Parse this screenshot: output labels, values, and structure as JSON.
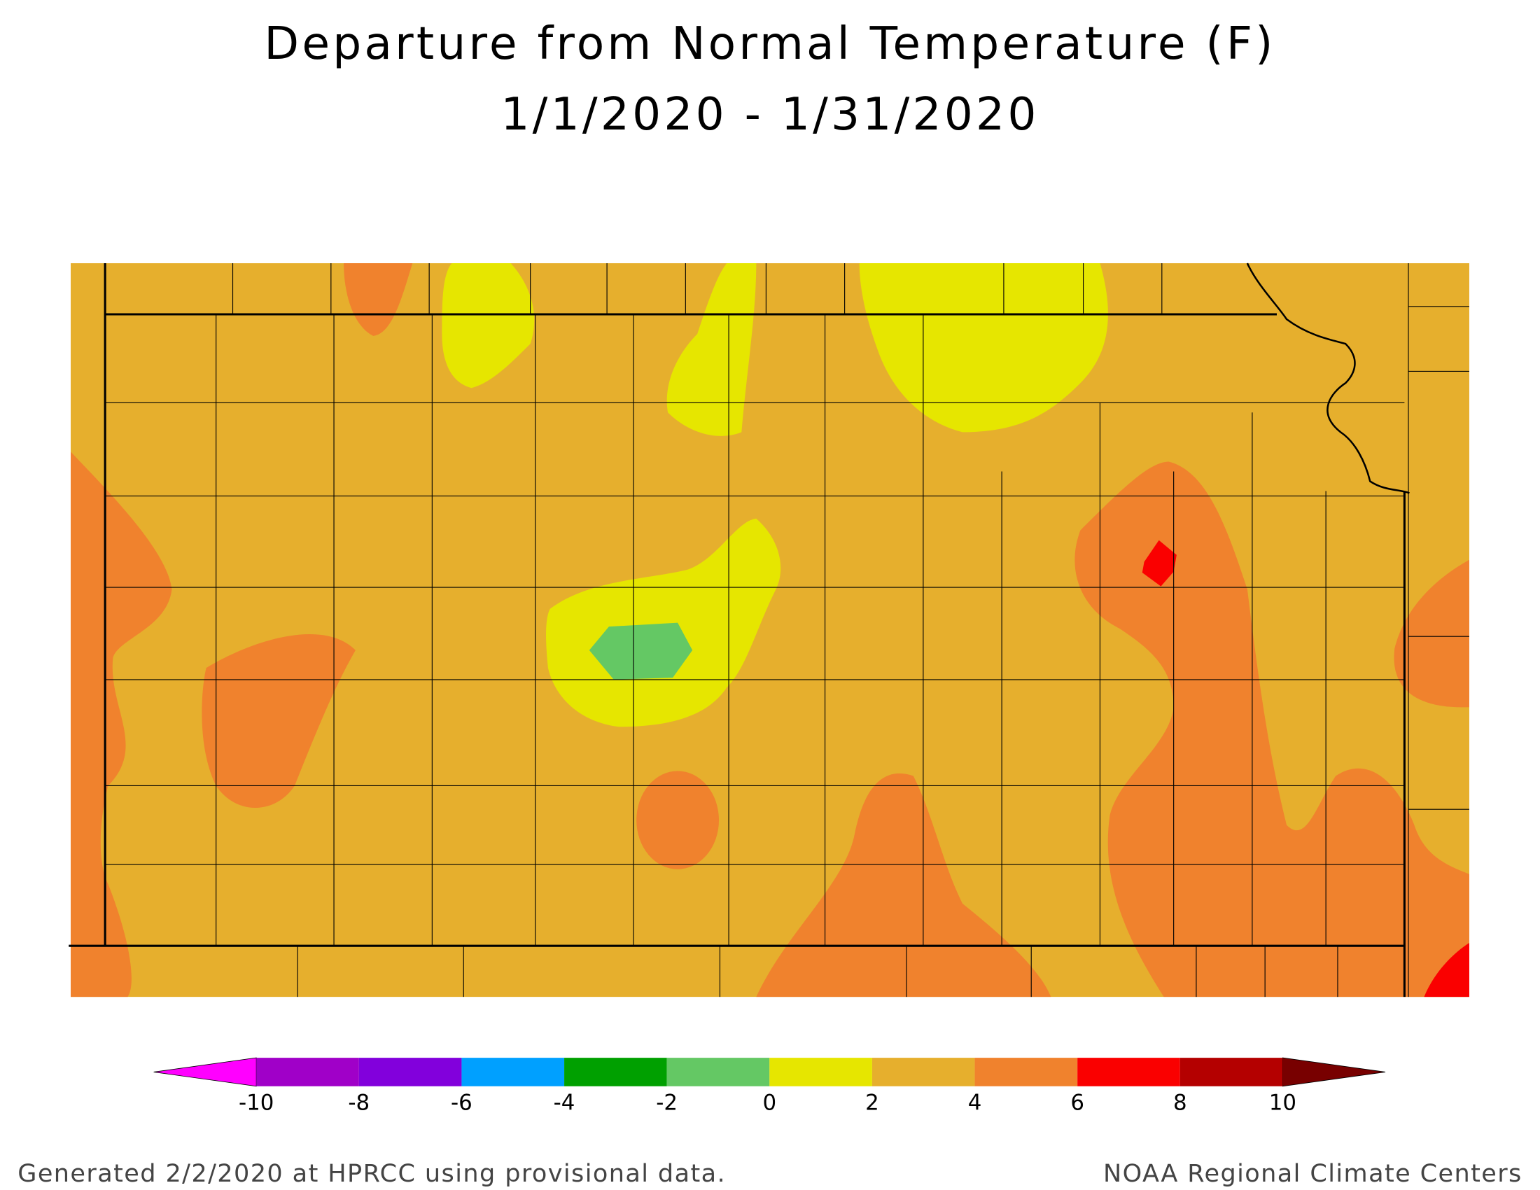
{
  "header": {
    "title": "Departure from Normal Temperature (F)",
    "subtitle": "1/1/2020 - 1/31/2020"
  },
  "legend": {
    "ticks": [
      -10,
      -8,
      -6,
      -4,
      -2,
      0,
      2,
      4,
      6,
      8,
      10
    ],
    "colors": [
      "#ff00ff",
      "#a000c8",
      "#8200dc",
      "#00a0ff",
      "#00a000",
      "#64c864",
      "#e6e600",
      "#e6af2d",
      "#f0822d",
      "#fa0000",
      "#b40000",
      "#780000"
    ]
  },
  "footer": {
    "left": "Generated 2/2/2020 at HPRCC using provisional data.",
    "right": "NOAA Regional Climate Centers"
  }
}
